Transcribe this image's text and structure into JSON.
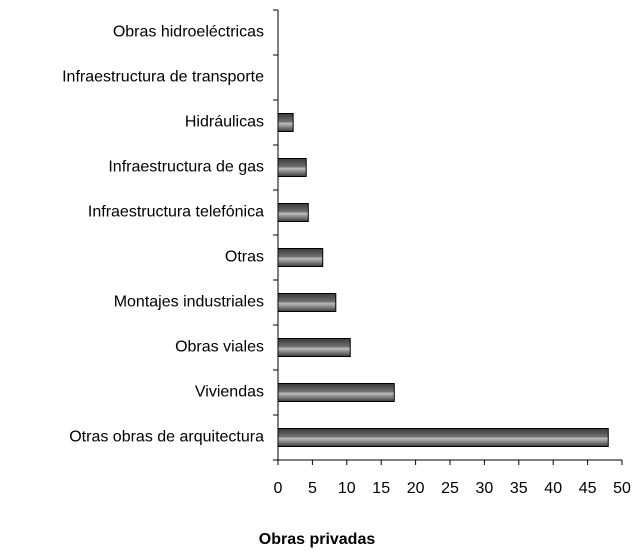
{
  "chart_data": {
    "type": "barh",
    "title": "Obras privadas",
    "categories": [
      "Obras hidroeléctricas",
      "Infraestructura de transporte",
      "Hidráulicas",
      "Infraestructura de gas",
      "Infraestructura telefónica",
      "Otras",
      "Montajes industriales",
      "Obras viales",
      "Viviendas",
      "Otras obras de arquitectura"
    ],
    "values": [
      0,
      0,
      2.2,
      4.1,
      4.4,
      6.5,
      8.4,
      10.5,
      16.9,
      48
    ],
    "color": "#707070",
    "xlim": [
      0,
      50
    ],
    "xticks": [
      0,
      5,
      10,
      15,
      20,
      25,
      30,
      35,
      40,
      45,
      50
    ]
  }
}
